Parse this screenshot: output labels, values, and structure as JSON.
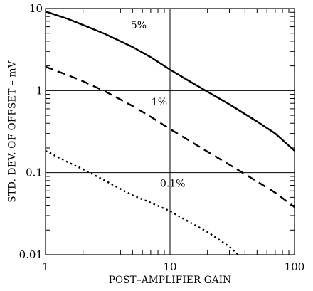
{
  "chart_data": {
    "type": "line",
    "xlabel": "POST–AMPLIFIER GAIN",
    "ylabel": "STD. DEV. OF OFFSET – mV",
    "xscale": "log",
    "yscale": "log",
    "xlim": [
      1,
      100
    ],
    "ylim": [
      0.01,
      10
    ],
    "x_ticks": [
      {
        "value": 1,
        "label": "1"
      },
      {
        "value": 10,
        "label": "10"
      },
      {
        "value": 100,
        "label": "100"
      }
    ],
    "y_ticks": [
      {
        "value": 0.01,
        "label": "0.01"
      },
      {
        "value": 0.1,
        "label": "0.1"
      },
      {
        "value": 1,
        "label": "1"
      },
      {
        "value": 10,
        "label": "10"
      }
    ],
    "grid": "major gridlines at decades",
    "legend": "none; series labeled directly on curves",
    "series": [
      {
        "name": "5%",
        "style": "solid",
        "label_at": [
          5.6,
          5.7
        ],
        "x": [
          1,
          1.5,
          2,
          3,
          5,
          7,
          10,
          15,
          20,
          30,
          50,
          70,
          100
        ],
        "y": [
          9.2,
          7.5,
          6.3,
          4.9,
          3.4,
          2.55,
          1.8,
          1.25,
          0.97,
          0.68,
          0.42,
          0.3,
          0.185
        ]
      },
      {
        "name": "1%",
        "style": "dashed",
        "label_at": [
          8.2,
          0.66
        ],
        "x": [
          1,
          1.5,
          2,
          3,
          5,
          7,
          10,
          15,
          20,
          30,
          50,
          70,
          100
        ],
        "y": [
          1.95,
          1.55,
          1.3,
          0.98,
          0.65,
          0.48,
          0.34,
          0.235,
          0.18,
          0.125,
          0.078,
          0.057,
          0.038
        ]
      },
      {
        "name": "0.1%",
        "style": "dotted",
        "label_at": [
          10.5,
          0.067
        ],
        "x": [
          1,
          1.5,
          2,
          3,
          5,
          7,
          10,
          15,
          20,
          30,
          35
        ],
        "y": [
          0.185,
          0.135,
          0.11,
          0.08,
          0.053,
          0.043,
          0.034,
          0.024,
          0.019,
          0.0125,
          0.0102
        ]
      }
    ]
  }
}
